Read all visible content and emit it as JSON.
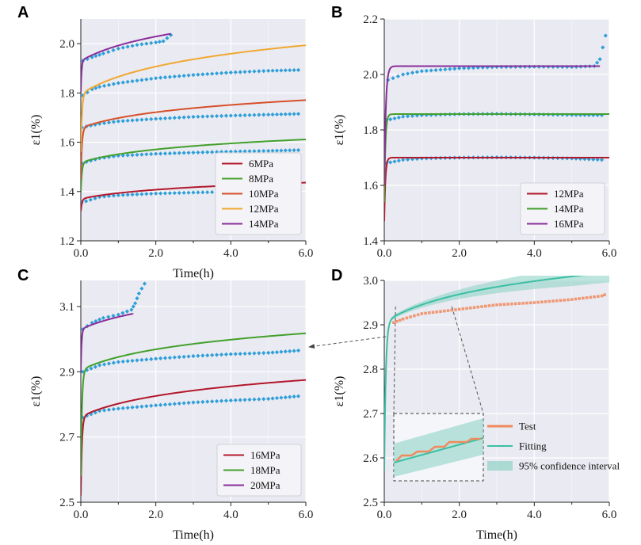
{
  "colors": {
    "bg": "#eaeaf2",
    "grid": "#ffffff",
    "marker": "#2f9fd8",
    "c6": "#b2182b",
    "c8": "#43a02c",
    "c10": "#d6502a",
    "c12": "#f0a830",
    "c14": "#8a2d9a",
    "c16": "#b2182b",
    "c18": "#43a02c",
    "c20": "#8a2d9a",
    "test": "#f08a5d",
    "fit": "#3bbfa4",
    "band": "#8fd3c6"
  },
  "chart_data": [
    {
      "panel": "A",
      "type": "line",
      "xlabel": "Time(h)",
      "ylabel": "ε1(%)",
      "xlim": [
        0,
        6
      ],
      "ylim": [
        1.2,
        2.1
      ],
      "xticks": [
        0,
        2,
        4,
        6
      ],
      "xtick_labels": [
        "0.0",
        "2.0",
        "4.0",
        "6.0"
      ],
      "yticks": [
        1.2,
        1.4,
        1.6,
        1.8,
        2.0
      ],
      "ytick_labels": [
        "1.2",
        "1.4",
        "1.6",
        "1.8",
        "2.0"
      ],
      "legend_position": "bottom-right",
      "series": [
        {
          "name": "6MPa",
          "color": "c6",
          "t_end": 6.0,
          "c0": 1.32,
          "c1": 1.37,
          "c2": 0.034,
          "tau": 0.03,
          "test_points": [
            [
              0.02,
              1.355
            ],
            [
              0.5,
              1.378
            ],
            [
              1,
              1.385
            ],
            [
              2,
              1.392
            ],
            [
              3,
              1.396
            ],
            [
              4,
              1.399
            ],
            [
              5,
              1.401
            ],
            [
              5.8,
              1.405
            ]
          ]
        },
        {
          "name": "8MPa",
          "color": "c8",
          "t_end": 6.0,
          "c0": 1.4,
          "c1": 1.518,
          "c2": 0.048,
          "tau": 0.03,
          "test_points": [
            [
              0.03,
              1.515
            ],
            [
              0.5,
              1.535
            ],
            [
              1,
              1.545
            ],
            [
              2,
              1.553
            ],
            [
              3,
              1.558
            ],
            [
              4,
              1.562
            ],
            [
              5,
              1.565
            ],
            [
              5.8,
              1.568
            ]
          ]
        },
        {
          "name": "10MPa",
          "color": "c10",
          "t_end": 6.0,
          "c0": 1.45,
          "c1": 1.658,
          "c2": 0.058,
          "tau": 0.03,
          "test_points": [
            [
              0.03,
              1.66
            ],
            [
              0.5,
              1.675
            ],
            [
              1,
              1.685
            ],
            [
              2,
              1.695
            ],
            [
              3,
              1.703
            ],
            [
              4,
              1.708
            ],
            [
              5,
              1.712
            ],
            [
              5.8,
              1.715
            ]
          ]
        },
        {
          "name": "12MPa",
          "color": "c12",
          "t_end": 6.0,
          "c0": 1.56,
          "c1": 1.795,
          "c2": 0.102,
          "tau": 0.03,
          "test_points": [
            [
              0.05,
              1.79
            ],
            [
              0.3,
              1.815
            ],
            [
              0.5,
              1.825
            ],
            [
              1,
              1.84
            ],
            [
              2,
              1.86
            ],
            [
              3,
              1.873
            ],
            [
              4,
              1.883
            ],
            [
              5,
              1.89
            ],
            [
              5.8,
              1.893
            ]
          ]
        },
        {
          "name": "14MPa",
          "color": "c14",
          "t_end": 2.4,
          "c0": 1.8,
          "c1": 1.93,
          "c2": 0.09,
          "tau": 0.02,
          "test_points": [
            [
              0.05,
              1.93
            ],
            [
              0.3,
              1.945
            ],
            [
              0.6,
              1.96
            ],
            [
              1,
              1.98
            ],
            [
              1.5,
              1.995
            ],
            [
              2,
              2.005
            ],
            [
              2.2,
              2.01
            ],
            [
              2.4,
              2.035
            ]
          ]
        }
      ]
    },
    {
      "panel": "B",
      "type": "line",
      "xlabel": "",
      "ylabel": "ε1(%)",
      "xlim": [
        0,
        6
      ],
      "ylim": [
        1.4,
        2.2
      ],
      "xticks": [
        0,
        2,
        4,
        6
      ],
      "xtick_labels": [
        "0.0",
        "2.0",
        "4.0",
        "6.0"
      ],
      "yticks": [
        1.4,
        1.6,
        1.8,
        2.0,
        2.2
      ],
      "ytick_labels": [
        "1.4",
        "1.6",
        "1.8",
        "2.0",
        "2.2"
      ],
      "legend_position": "bottom-right",
      "series": [
        {
          "name": "12MPa",
          "color": "c16",
          "t_end": 6.0,
          "c0": 1.47,
          "c1": 1.7,
          "c2": 0.0,
          "tau": 0.03,
          "test_points": [
            [
              0.05,
              1.68
            ],
            [
              0.5,
              1.692
            ],
            [
              1,
              1.697
            ],
            [
              2,
              1.7
            ],
            [
              3,
              1.701
            ],
            [
              4,
              1.7
            ],
            [
              5,
              1.697
            ],
            [
              5.8,
              1.692
            ]
          ]
        },
        {
          "name": "14MPa",
          "color": "c18",
          "t_end": 6.0,
          "c0": 1.54,
          "c1": 1.857,
          "c2": 0.0,
          "tau": 0.03,
          "test_points": [
            [
              0.05,
              1.835
            ],
            [
              0.5,
              1.848
            ],
            [
              1,
              1.853
            ],
            [
              2,
              1.857
            ],
            [
              3,
              1.858
            ],
            [
              4,
              1.856
            ],
            [
              5,
              1.854
            ],
            [
              5.8,
              1.853
            ]
          ]
        },
        {
          "name": "16MPa",
          "color": "c20",
          "t_end": 5.75,
          "c0": 1.6,
          "c1": 2.03,
          "c2": 0.0,
          "tau": 0.04,
          "test_points": [
            [
              0.1,
              1.98
            ],
            [
              0.5,
              2.0
            ],
            [
              1,
              2.012
            ],
            [
              2,
              2.022
            ],
            [
              3,
              2.027
            ],
            [
              4,
              2.028
            ],
            [
              5,
              2.027
            ],
            [
              5.6,
              2.03
            ],
            [
              5.75,
              2.055
            ],
            [
              5.9,
              2.14
            ]
          ]
        }
      ]
    },
    {
      "panel": "C",
      "type": "line",
      "xlabel": "Time(h)",
      "ylabel": "ε1(%)",
      "xlim": [
        0,
        6
      ],
      "ylim": [
        2.5,
        3.18
      ],
      "xticks": [
        0,
        2,
        4,
        6
      ],
      "xtick_labels": [
        "0.0",
        "2.0",
        "4.0",
        "6.0"
      ],
      "yticks": [
        2.5,
        2.7,
        2.9,
        3.1
      ],
      "ytick_labels": [
        "2.5",
        "2.7",
        "2.9",
        "3.1"
      ],
      "legend_position": "bottom-right",
      "series": [
        {
          "name": "16MPa",
          "color": "c16",
          "t_end": 6.0,
          "c0": 2.52,
          "c1": 2.762,
          "c2": 0.058,
          "tau": 0.03,
          "test_points": [
            [
              0.05,
              2.76
            ],
            [
              0.5,
              2.78
            ],
            [
              1,
              2.787
            ],
            [
              2,
              2.797
            ],
            [
              3,
              2.806
            ],
            [
              4,
              2.812
            ],
            [
              5,
              2.817
            ],
            [
              5.8,
              2.825
            ]
          ]
        },
        {
          "name": "18MPa",
          "color": "c18",
          "t_end": 6.0,
          "c0": 2.58,
          "c1": 2.905,
          "c2": 0.058,
          "tau": 0.03,
          "test_points": [
            [
              0.05,
              2.9
            ],
            [
              0.5,
              2.92
            ],
            [
              1,
              2.93
            ],
            [
              2,
              2.94
            ],
            [
              3,
              2.948
            ],
            [
              4,
              2.954
            ],
            [
              5,
              2.958
            ],
            [
              5.8,
              2.965
            ]
          ]
        },
        {
          "name": "20MPa",
          "color": "c20",
          "t_end": 1.4,
          "c0": 2.9,
          "c1": 3.03,
          "c2": 0.055,
          "tau": 0.02,
          "test_points": [
            [
              0.05,
              3.03
            ],
            [
              0.3,
              3.05
            ],
            [
              0.6,
              3.065
            ],
            [
              1,
              3.075
            ],
            [
              1.35,
              3.09
            ],
            [
              1.45,
              3.11
            ],
            [
              1.55,
              3.14
            ],
            [
              1.7,
              3.17
            ]
          ]
        }
      ]
    },
    {
      "panel": "D",
      "type": "line",
      "xlabel": "Time(h)",
      "ylabel": "ε1(%)",
      "xlim": [
        0,
        6
      ],
      "ylim": [
        2.5,
        3.0
      ],
      "xticks": [
        0,
        2,
        4,
        6
      ],
      "xtick_labels": [
        "0.0",
        "2.0",
        "4.0",
        "6.0"
      ],
      "yticks": [
        2.5,
        2.6,
        2.7,
        2.8,
        2.9,
        3.0
      ],
      "ytick_labels": [
        "2.5",
        "2.6",
        "2.7",
        "2.8",
        "2.9",
        "3.0"
      ],
      "legend_position": "bottom-right",
      "fit": {
        "c0": 2.57,
        "c1": 2.905,
        "c2": 0.058,
        "tau": 0.04
      },
      "confidence_half_width_max": 0.022,
      "test_points": [
        [
          0.25,
          2.905
        ],
        [
          0.5,
          2.913
        ],
        [
          1,
          2.925
        ],
        [
          1.5,
          2.93
        ],
        [
          2,
          2.935
        ],
        [
          3,
          2.945
        ],
        [
          4,
          2.95
        ],
        [
          5,
          2.957
        ],
        [
          5.8,
          2.965
        ],
        [
          5.95,
          2.97
        ]
      ],
      "zoom_range_x": [
        0.3,
        1.8
      ],
      "legend": [
        {
          "label": "Test",
          "kind": "line",
          "color": "test"
        },
        {
          "label": "Fitting",
          "kind": "line",
          "color": "fit"
        },
        {
          "label": "95% confidence interval",
          "kind": "band",
          "color": "band"
        }
      ]
    }
  ]
}
